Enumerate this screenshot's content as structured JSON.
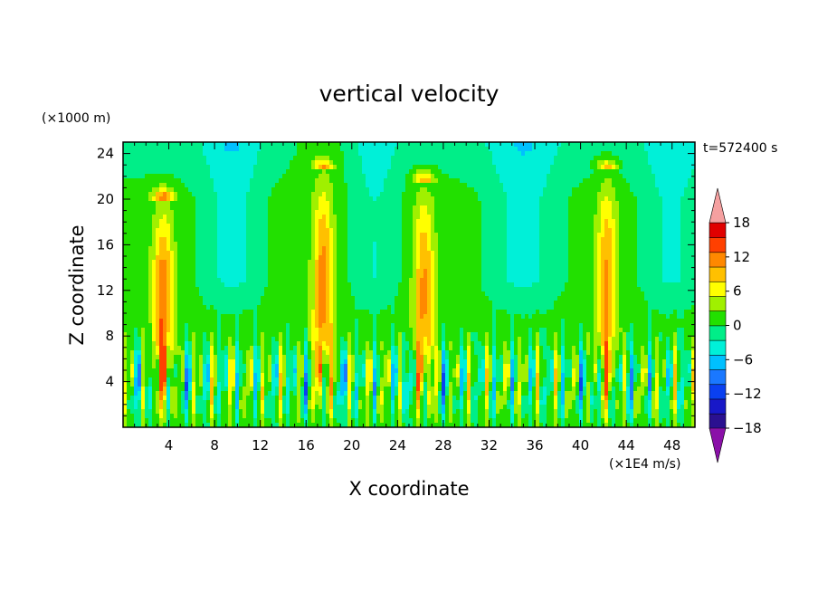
{
  "chart_data": {
    "type": "heatmap",
    "title": "vertical velocity",
    "xlabel": "X coordinate",
    "ylabel": "Z coordinate",
    "x_unit": "(×1E4 m/s)",
    "y_unit": "(×1000 m)",
    "time_label": "t=572400 s",
    "xlim": [
      0,
      50
    ],
    "ylim": [
      0,
      25
    ],
    "x_ticks": [
      4,
      8,
      12,
      16,
      20,
      24,
      28,
      32,
      36,
      40,
      44,
      48
    ],
    "y_ticks": [
      4,
      8,
      12,
      16,
      20,
      24
    ],
    "colorbar": {
      "tick_values": [
        18,
        12,
        6,
        0,
        -6,
        -12,
        -18
      ],
      "tick_labels": [
        "18",
        "12",
        "6",
        "0",
        "−6",
        "−12",
        "−18"
      ],
      "levels_low_to_high": [
        -21,
        -18,
        -15,
        -12,
        -9,
        -6,
        -3,
        0,
        3,
        6,
        9,
        12,
        15,
        18,
        21
      ],
      "colors_low_to_high": [
        "#8a10a8",
        "#2a1090",
        "#1818c8",
        "#0a40f0",
        "#1a78ff",
        "#00c0ff",
        "#00f0d8",
        "#00ee88",
        "#22e000",
        "#a0f000",
        "#ffff00",
        "#ffc000",
        "#ff8800",
        "#ff4000",
        "#e00000",
        "#f5a0a0"
      ],
      "under_color": "#8a10a8",
      "over_color": "#f5a0a0"
    },
    "features": {
      "updrafts": [
        {
          "x": 3.5,
          "peak": 14,
          "top_z": 20
        },
        {
          "x": 17.5,
          "peak": 13,
          "top_z": 22.5
        },
        {
          "x": 26.3,
          "peak": 12,
          "top_z": 21.5
        },
        {
          "x": 42.3,
          "peak": 12,
          "top_z": 22.5
        }
      ],
      "background_value": 1
    }
  }
}
